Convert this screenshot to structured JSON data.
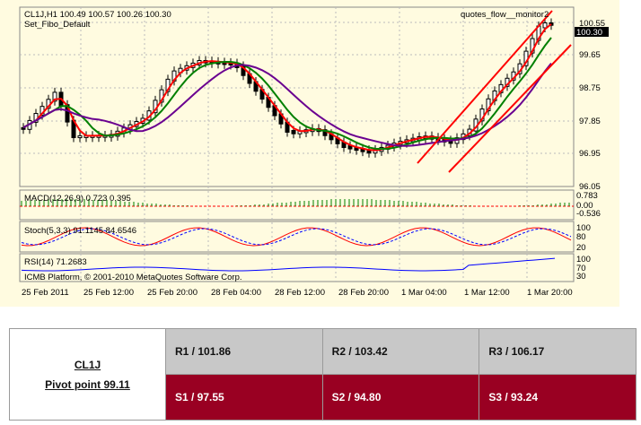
{
  "chart_header": {
    "symbol_line": "CL1J,H1  100.49 100.57 100.26 100.30",
    "template": "Set_Fibo_Default",
    "indicator_name": "quotes_flow__monitor2",
    "current_price_tag": "100.30"
  },
  "indicators": {
    "macd_label": "MACD(12,26,9) 0.723 0.395",
    "macd_scale": [
      "0.783",
      "0.00",
      "-0.536"
    ],
    "stoch_label": "Stoch(5,3,3) 91.1145 84.6546",
    "stoch_scale": [
      "100",
      "80",
      "20"
    ],
    "rsi_label": "RSI(14) 71.2683",
    "rsi_scale": [
      "100",
      "70",
      "30"
    ],
    "copyright": "ICMB Platform, © 2001-2010 MetaQuotes Software Corp."
  },
  "chart_data": {
    "type": "candlestick",
    "price_axis_ticks": [
      "100.55",
      "99.65",
      "98.75",
      "97.85",
      "96.95",
      "96.05"
    ],
    "time_axis_ticks": [
      "25 Feb 2011",
      "25 Feb 12:00",
      "25 Feb 20:00",
      "28 Feb 04:00",
      "28 Feb 12:00",
      "28 Feb 20:00",
      "1 Mar 04:00",
      "1 Mar 12:00",
      "1 Mar 20:00"
    ],
    "ylim": [
      96.05,
      100.55
    ],
    "colors": {
      "bull": "#ffffff",
      "bear": "#000000",
      "ma_fast": "#ff0000",
      "ma_mid": "#008000",
      "ma_slow": "#6a0090",
      "channel": "#ff0000"
    }
  },
  "pivot_table": {
    "symbol": "CL1J",
    "pivot": "Pivot point 99.11",
    "resistance": [
      "R1 / 101.86",
      "R2  / 103.42",
      "R3 / 106.17"
    ],
    "support": [
      "S1 / 97.55",
      "S2 / 94.80",
      "S3 / 93.24"
    ],
    "colors": {
      "resistance_bg": "#c8c8c8",
      "support_bg": "#990022"
    }
  }
}
